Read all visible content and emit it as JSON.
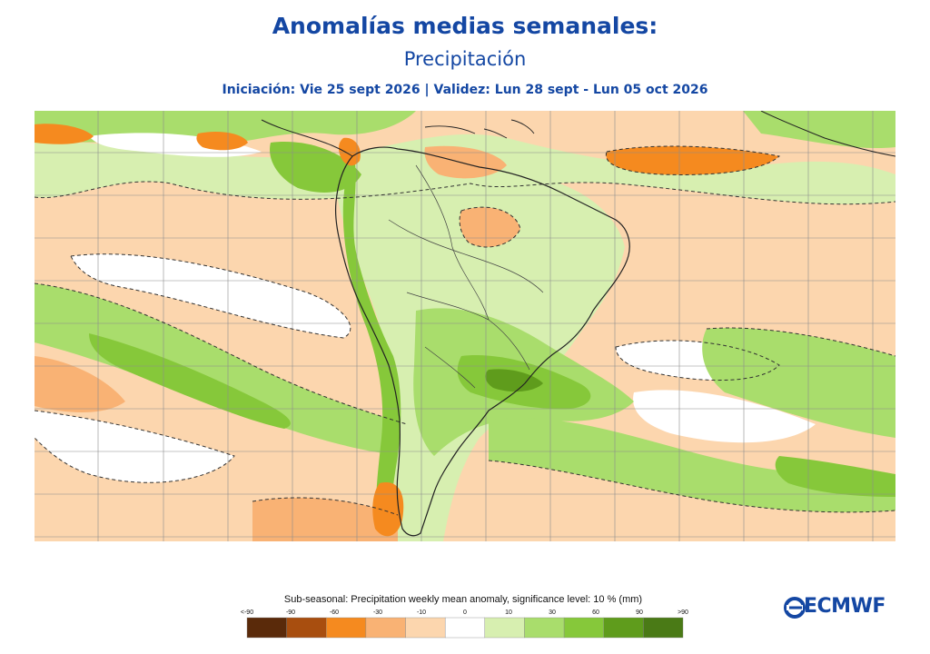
{
  "header": {
    "title": "Anomalías medias semanales:",
    "subtitle": "Precipitación",
    "dates": "Iniciación: Vie 25 sept 2026 | Validez: Lun 28 sept - Lun 05 oct 2026"
  },
  "legend": {
    "title": "Sub-seasonal: Precipitation weekly mean anomaly, significance level: 10 % (mm)",
    "tick_labels": [
      "<-90",
      "-90",
      "-60",
      "-30",
      "-10",
      "0",
      "10",
      "30",
      "60",
      "90",
      ">90"
    ],
    "colors": [
      "#5a2a0a",
      "#a84e0f",
      "#f58a1f",
      "#f9b274",
      "#fcd6ae",
      "#ffffff",
      "#d7efb0",
      "#a9dd6c",
      "#86c83a",
      "#5f9c1c",
      "#4a7a16"
    ]
  },
  "logo": {
    "text": "ECMWF",
    "color": "#1447a3"
  },
  "map": {
    "region": "South America and surrounding oceans",
    "colors": {
      "ocean_bg": "#fcd6ae",
      "light_green": "#d7efb0",
      "mid_green": "#a9dd6c",
      "strong_green": "#86c83a",
      "dark_green": "#5f9c1c",
      "orange": "#f58a1f",
      "mid_orange": "#f9b274",
      "white": "#ffffff"
    }
  }
}
